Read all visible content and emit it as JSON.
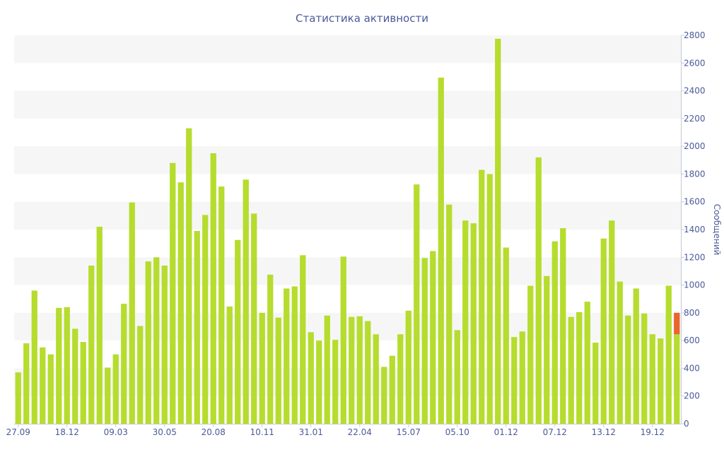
{
  "chart_data": {
    "type": "bar",
    "title": "Статистика активности",
    "ylabel": "Сообщений",
    "xlabel": "",
    "ylim": [
      0,
      2800
    ],
    "y_ticks": [
      0,
      200,
      400,
      600,
      800,
      1000,
      1200,
      1400,
      1600,
      1800,
      2000,
      2200,
      2400,
      2600,
      2800
    ],
    "y_axis_side": "right",
    "grid": "alternating horizontal bands",
    "x_tick_labels": [
      {
        "index": 0,
        "label": "27.09"
      },
      {
        "index": 6,
        "label": "18.12"
      },
      {
        "index": 12,
        "label": "09.03"
      },
      {
        "index": 18,
        "label": "30.05"
      },
      {
        "index": 24,
        "label": "20.08"
      },
      {
        "index": 30,
        "label": "10.11"
      },
      {
        "index": 36,
        "label": "31.01"
      },
      {
        "index": 42,
        "label": "22.04"
      },
      {
        "index": 48,
        "label": "15.07"
      },
      {
        "index": 54,
        "label": "05.10"
      },
      {
        "index": 60,
        "label": "01.12"
      },
      {
        "index": 66,
        "label": "07.12"
      },
      {
        "index": 72,
        "label": "13.12"
      },
      {
        "index": 78,
        "label": "19.12"
      }
    ],
    "values": [
      370,
      580,
      960,
      550,
      500,
      835,
      840,
      685,
      590,
      1140,
      1420,
      405,
      500,
      865,
      1595,
      705,
      1170,
      1200,
      1140,
      1880,
      1740,
      2130,
      1390,
      1505,
      1950,
      1710,
      845,
      1325,
      1760,
      1515,
      800,
      1075,
      765,
      975,
      990,
      1215,
      660,
      600,
      780,
      605,
      1205,
      770,
      775,
      740,
      645,
      410,
      490,
      645,
      815,
      1725,
      1195,
      1245,
      2495,
      1580,
      675,
      1465,
      1445,
      1830,
      1800,
      2775,
      1270,
      625,
      665,
      995,
      1920,
      1065,
      1315,
      1410,
      770,
      805,
      880,
      585,
      1335,
      1465,
      1025,
      780,
      975,
      795,
      645,
      615,
      995,
      800
    ],
    "colors": {
      "bar": "#b6dc2e",
      "highlight_bar": "#e8652e",
      "axis_text": "#4a5a9a",
      "band": "#f6f6f6"
    },
    "highlight": {
      "index": 81,
      "from": 645,
      "to": 800
    }
  }
}
